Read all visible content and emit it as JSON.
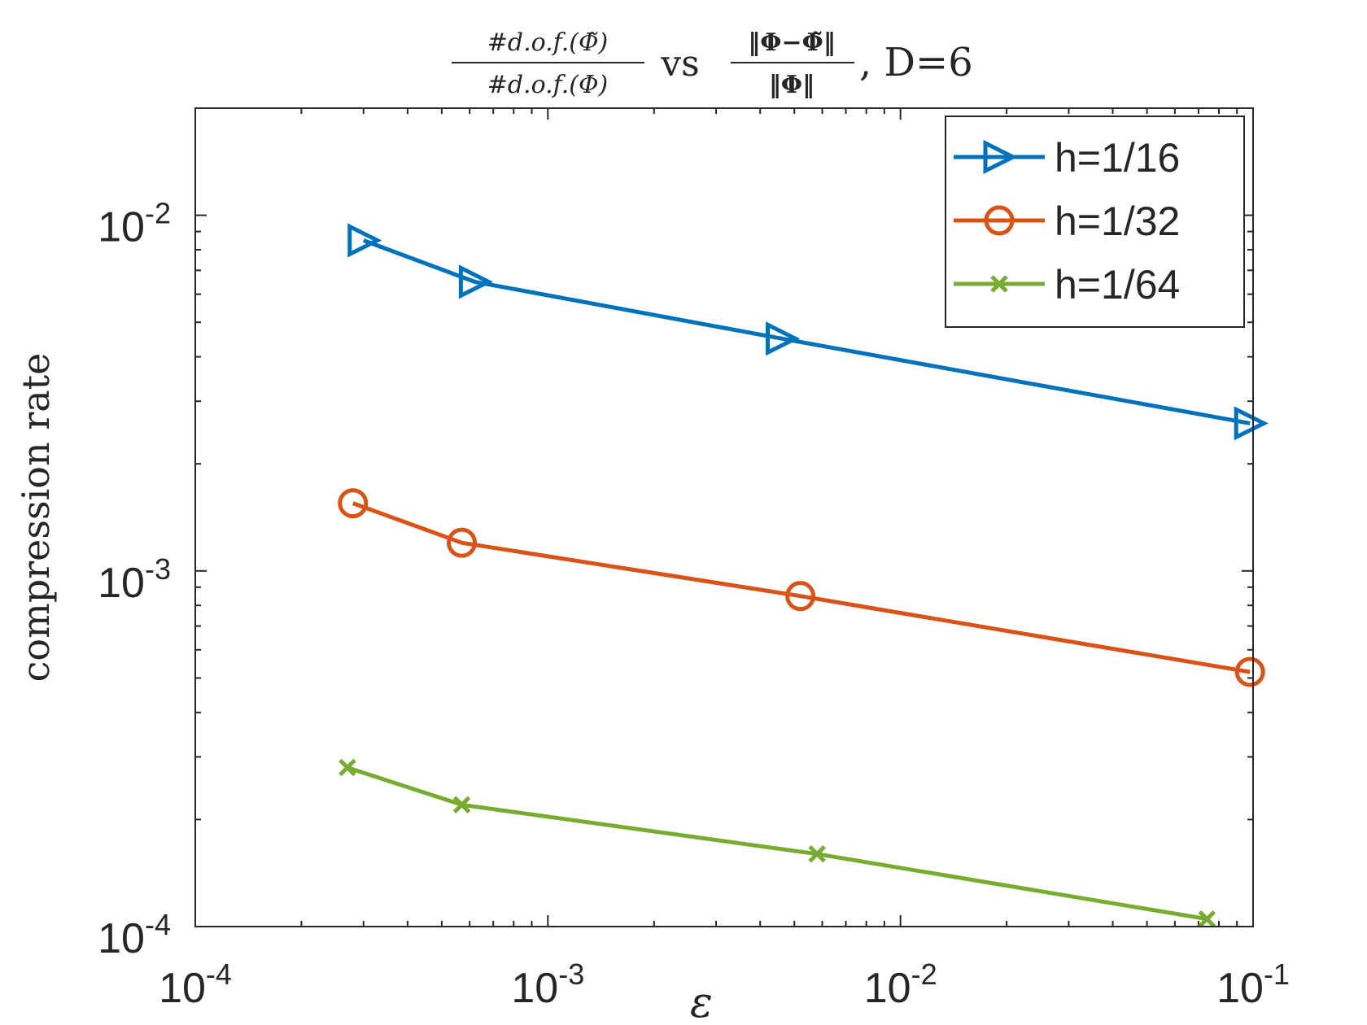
{
  "chart_data": {
    "type": "line",
    "title": {
      "frac1_num": "#d.o.f.(Φ̃)",
      "frac1_den": "#d.o.f.(Φ)",
      "vs": "vs",
      "frac2_num": "‖Φ−Φ̃‖",
      "frac2_den": "‖Φ‖",
      "suffix": ", D=6"
    },
    "xlabel": "ε",
    "ylabel": "compression rate",
    "xscale": "log",
    "yscale": "log",
    "xlim": [
      0.0001,
      0.1
    ],
    "ylim": [
      0.0001,
      0.02
    ],
    "xticks": [
      {
        "base": "10",
        "exp": "-4",
        "value": 0.0001
      },
      {
        "base": "10",
        "exp": "-3",
        "value": 0.001
      },
      {
        "base": "10",
        "exp": "-2",
        "value": 0.01
      },
      {
        "base": "10",
        "exp": "-1",
        "value": 0.1
      }
    ],
    "yticks": [
      {
        "base": "10",
        "exp": "-4",
        "value": 0.0001
      },
      {
        "base": "10",
        "exp": "-3",
        "value": 0.001
      },
      {
        "base": "10",
        "exp": "-2",
        "value": 0.01
      }
    ],
    "legend_position": "top-right",
    "series": [
      {
        "name": "h=1/16",
        "color": "#0072BD",
        "marker": "triangle-right",
        "x": [
          0.0003,
          0.00062,
          0.0046,
          0.098
        ],
        "y": [
          0.0085,
          0.0065,
          0.0045,
          0.0026
        ]
      },
      {
        "name": "h=1/32",
        "color": "#D95319",
        "marker": "circle",
        "x": [
          0.00028,
          0.00057,
          0.0052,
          0.098
        ],
        "y": [
          0.00155,
          0.0012,
          0.00085,
          0.00052
        ]
      },
      {
        "name": "h=1/64",
        "color": "#77AC30",
        "marker": "x",
        "x": [
          0.00027,
          0.00057,
          0.0058,
          0.074
        ],
        "y": [
          0.00028,
          0.00022,
          0.00016,
          0.000105
        ]
      }
    ]
  }
}
